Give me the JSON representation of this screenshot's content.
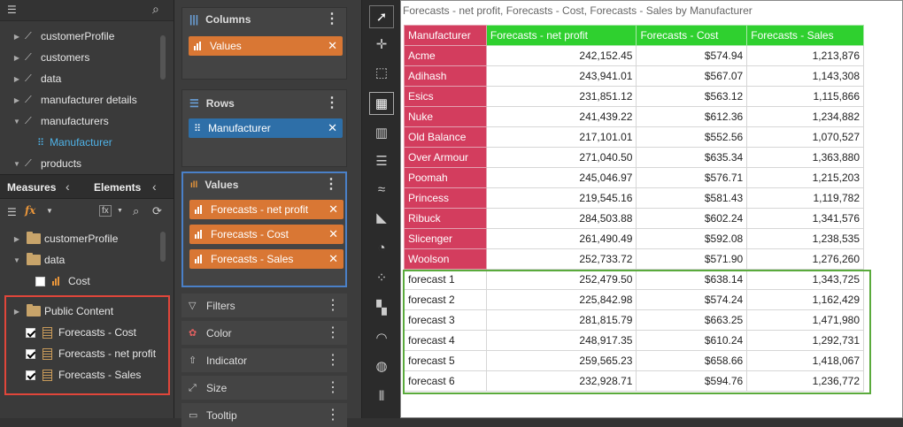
{
  "tree": [
    {
      "label": "customerProfile",
      "expanded": false
    },
    {
      "label": "customers",
      "expanded": false
    },
    {
      "label": "data",
      "expanded": false
    },
    {
      "label": "manufacturer details",
      "expanded": false
    },
    {
      "label": "manufacturers",
      "expanded": true
    },
    {
      "label": "Manufacturer",
      "child": true
    },
    {
      "label": "products",
      "expanded": true
    }
  ],
  "tabs": {
    "measures": "Measures",
    "elements": "Elements"
  },
  "measures_tree": [
    {
      "label": "customerProfile"
    },
    {
      "label": "data"
    },
    {
      "label": "Cost"
    }
  ],
  "public": {
    "folder": "Public Content",
    "items": [
      "Forecasts - Cost",
      "Forecasts - net profit",
      "Forecasts - Sales"
    ]
  },
  "columns": {
    "title": "Columns",
    "pills": [
      "Values"
    ]
  },
  "rows": {
    "title": "Rows",
    "pills": [
      "Manufacturer"
    ]
  },
  "values": {
    "title": "Values",
    "pills": [
      "Forecasts - net profit",
      "Forecasts - Cost",
      "Forecasts - Sales"
    ]
  },
  "dropdowns": [
    "Filters",
    "Color",
    "Indicator",
    "Size",
    "Tooltip"
  ],
  "table": {
    "title": "Forecasts - net profit, Forecasts - Cost, Forecasts - Sales by Manufacturer",
    "headers": [
      "Manufacturer",
      "Forecasts - net profit",
      "Forecasts - Cost",
      "Forecasts - Sales"
    ],
    "rows": [
      [
        "Acme",
        "242,152.45",
        "$574.94",
        "1,213,876"
      ],
      [
        "Adihash",
        "243,941.01",
        "$567.07",
        "1,143,308"
      ],
      [
        "Esics",
        "231,851.12",
        "$563.12",
        "1,115,866"
      ],
      [
        "Nuke",
        "241,439.22",
        "$612.36",
        "1,234,882"
      ],
      [
        "Old Balance",
        "217,101.01",
        "$552.56",
        "1,070,527"
      ],
      [
        "Over Armour",
        "271,040.50",
        "$635.34",
        "1,363,880"
      ],
      [
        "Poomah",
        "245,046.97",
        "$576.71",
        "1,215,203"
      ],
      [
        "Princess",
        "219,545.16",
        "$581.43",
        "1,119,782"
      ],
      [
        "Ribuck",
        "284,503.88",
        "$602.24",
        "1,341,576"
      ],
      [
        "Slicenger",
        "261,490.49",
        "$592.08",
        "1,238,535"
      ],
      [
        "Woolson",
        "252,733.72",
        "$571.90",
        "1,276,260"
      ]
    ],
    "forecast_rows": [
      [
        "forecast 1",
        "252,479.50",
        "$638.14",
        "1,343,725"
      ],
      [
        "forecast 2",
        "225,842.98",
        "$574.24",
        "1,162,429"
      ],
      [
        "forecast 3",
        "281,815.79",
        "$663.25",
        "1,471,980"
      ],
      [
        "forecast 4",
        "248,917.35",
        "$610.24",
        "1,292,731"
      ],
      [
        "forecast 5",
        "259,565.23",
        "$658.66",
        "1,418,067"
      ],
      [
        "forecast 6",
        "232,928.71",
        "$594.76",
        "1,236,772"
      ]
    ]
  },
  "colors": {
    "header_green": "#2fd02f",
    "manufacturer_red": "#d33d5e",
    "pill_orange": "#d97734",
    "pill_blue": "#2e6fa8",
    "highlight_red": "#e0463a",
    "highlight_blue": "#4a80c8",
    "highlight_green": "#5aaa3c"
  }
}
